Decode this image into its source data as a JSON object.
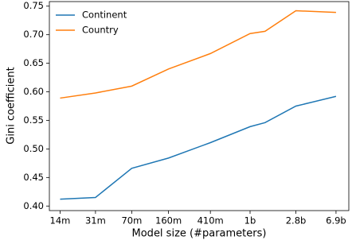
{
  "chart_data": {
    "type": "line",
    "x_label": "Model size (#parameters)",
    "y_label": "Gini coefficient",
    "x": [
      14000000,
      31000000,
      70000000,
      160000000,
      410000000,
      1000000000,
      1400000000,
      2800000000,
      6900000000
    ],
    "series": [
      {
        "name": "Continent",
        "color": "#1f77b4",
        "values": [
          0.412,
          0.415,
          0.466,
          0.484,
          0.511,
          0.539,
          0.546,
          0.575,
          0.592
        ]
      },
      {
        "name": "Country",
        "color": "#ff7f0e",
        "values": [
          0.589,
          0.598,
          0.61,
          0.64,
          0.667,
          0.702,
          0.706,
          0.742,
          0.739
        ]
      }
    ],
    "x_scale": "log",
    "xlim": [
      11000000,
      9200000000
    ],
    "xticks": [
      {
        "value": 14000000,
        "label": "14m"
      },
      {
        "value": 31000000,
        "label": "31m"
      },
      {
        "value": 70000000,
        "label": "70m"
      },
      {
        "value": 160000000,
        "label": "160m"
      },
      {
        "value": 410000000,
        "label": "410m"
      },
      {
        "value": 1000000000,
        "label": "1b"
      },
      {
        "value": 2800000000,
        "label": "2.8b"
      },
      {
        "value": 6900000000,
        "label": "6.9b"
      }
    ],
    "ylim": [
      0.392,
      0.758
    ],
    "yticks": [
      {
        "value": 0.4,
        "label": "0.40"
      },
      0.45,
      {
        "value": 0.5,
        "label": "0.50"
      },
      0.55,
      {
        "value": 0.6,
        "label": "0.60"
      },
      0.65,
      {
        "value": 0.7,
        "label": "0.70"
      },
      0.75
    ],
    "legend": "upper left",
    "grid": false
  }
}
